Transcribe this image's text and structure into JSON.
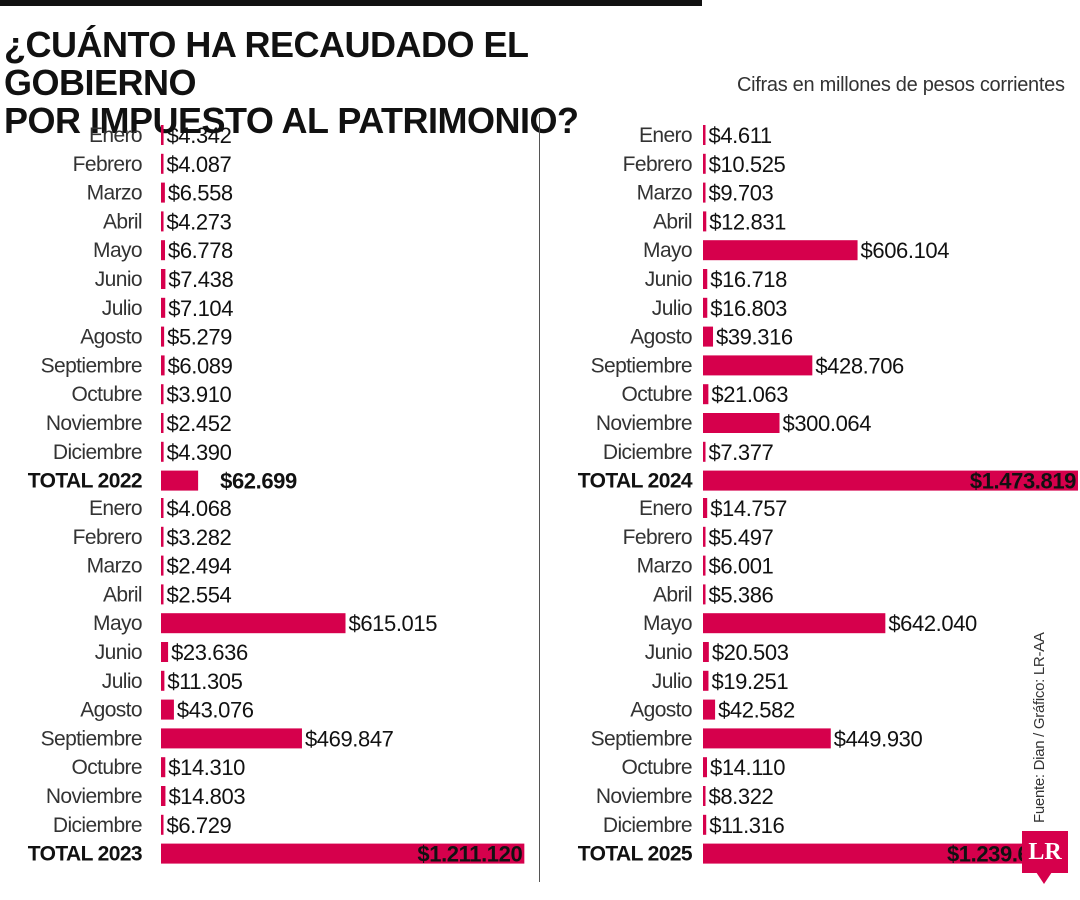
{
  "header": {
    "title_line1": "¿CUÁNTO HA RECAUDADO EL GOBIERNO",
    "title_line2": "POR IMPUESTO AL PATRIMONIO?",
    "subtitle": "Cifras en millones de pesos corrientes"
  },
  "footer": {
    "source": "Fuente: Dian / Gráfico: LR-AA",
    "logo": "LR"
  },
  "colors": {
    "bar": "#d6004c",
    "text": "#1a1a1a"
  },
  "chart_data": [
    {
      "type": "bar",
      "orientation": "horizontal",
      "total_label": "TOTAL 2022",
      "total_value_label": "$62.699",
      "total": 62699,
      "categories": [
        "Enero",
        "Febrero",
        "Marzo",
        "Abril",
        "Mayo",
        "Junio",
        "Julio",
        "Agosto",
        "Septiembre",
        "Octubre",
        "Noviembre",
        "Diciembre"
      ],
      "values": [
        4342,
        4087,
        6558,
        4273,
        6778,
        7438,
        7104,
        5279,
        6089,
        3910,
        2452,
        4390
      ],
      "value_labels": [
        "$4.342",
        "$4.087",
        "$6.558",
        "$4.273",
        "$6.778",
        "$7.438",
        "$7.104",
        "$5.279",
        "$6.089",
        "$3.910",
        "$2.452",
        "$4.390"
      ]
    },
    {
      "type": "bar",
      "orientation": "horizontal",
      "total_label": "TOTAL 2023",
      "total_value_label": "$1.211.120",
      "total": 1211120,
      "categories": [
        "Enero",
        "Febrero",
        "Marzo",
        "Abril",
        "Mayo",
        "Junio",
        "Julio",
        "Agosto",
        "Septiembre",
        "Octubre",
        "Noviembre",
        "Diciembre"
      ],
      "values": [
        4068,
        3282,
        2494,
        2554,
        615015,
        23636,
        11305,
        43076,
        469847,
        14310,
        14803,
        6729
      ],
      "value_labels": [
        "$4.068",
        "$3.282",
        "$2.494",
        "$2.554",
        "$615.015",
        "$23.636",
        "$11.305",
        "$43.076",
        "$469.847",
        "$14.310",
        "$14.803",
        "$6.729"
      ]
    },
    {
      "type": "bar",
      "orientation": "horizontal",
      "total_label": "TOTAL 2024",
      "total_value_label": "$1.473.819",
      "total": 1473819,
      "categories": [
        "Enero",
        "Febrero",
        "Marzo",
        "Abril",
        "Mayo",
        "Junio",
        "Julio",
        "Agosto",
        "Septiembre",
        "Octubre",
        "Noviembre",
        "Diciembre"
      ],
      "values": [
        4611,
        10525,
        9703,
        12831,
        606104,
        16718,
        16803,
        39316,
        428706,
        21063,
        300064,
        7377
      ],
      "value_labels": [
        "$4.611",
        "$10.525",
        "$9.703",
        "$12.831",
        "$606.104",
        "$16.718",
        "$16.803",
        "$39.316",
        "$428.706",
        "$21.063",
        "$300.064",
        "$7.377"
      ]
    },
    {
      "type": "bar",
      "orientation": "horizontal",
      "total_label": "TOTAL 2025",
      "total_value_label": "$1.239.695",
      "total": 1239695,
      "categories": [
        "Enero",
        "Febrero",
        "Marzo",
        "Abril",
        "Mayo",
        "Junio",
        "Julio",
        "Agosto",
        "Septiembre",
        "Octubre",
        "Noviembre",
        "Diciembre"
      ],
      "values": [
        14757,
        5497,
        6001,
        5386,
        642040,
        20503,
        19251,
        42582,
        449930,
        14110,
        8322,
        11316
      ],
      "value_labels": [
        "$14.757",
        "$5.497",
        "$6.001",
        "$5.386",
        "$642.040",
        "$20.503",
        "$19.251",
        "$42.582",
        "$449.930",
        "$14.110",
        "$8.322",
        "$11.316"
      ]
    }
  ]
}
